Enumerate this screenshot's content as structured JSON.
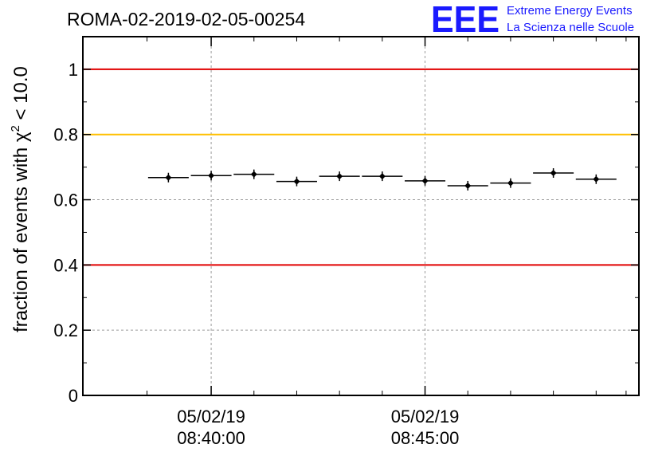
{
  "header": {
    "run_title": "ROMA-02-2019-02-05-00254",
    "logo_text": "EEE",
    "logo_line1": "Extreme Energy Events",
    "logo_line2": "La Scienza nelle Scuole"
  },
  "colors": {
    "red_line": "#e00000",
    "orange_line": "#ffc000",
    "logo_blue": "#1a1aff",
    "grid": "#9a9a9a",
    "points": "#000000"
  },
  "chart_data": {
    "type": "scatter",
    "title": "ROMA-02-2019-02-05-00254",
    "ylabel_prefix": "fraction of events with ",
    "ylabel_symbol": "χ",
    "ylabel_superscript": "2",
    "ylabel_suffix": " < 10.0",
    "ylim": [
      0,
      1.1
    ],
    "yticks": [
      0,
      0.2,
      0.4,
      0.6,
      0.8,
      1
    ],
    "ytick_labels": [
      "0",
      "0.2",
      "0.4",
      "0.6",
      "0.8",
      "1"
    ],
    "xlim_minutes": [
      -3.0,
      10.0
    ],
    "xticks": [
      {
        "minute": 0,
        "date": "05/02/19",
        "time": "08:40:00"
      },
      {
        "minute": 5,
        "date": "05/02/19",
        "time": "08:45:00"
      }
    ],
    "minor_xtick_minutes": [
      -1.5,
      1.0,
      2.0,
      3.0,
      4.0,
      6.0,
      7.0,
      8.0,
      9.0,
      9.7
    ],
    "reference_lines": [
      {
        "y": 1.0,
        "color": "red"
      },
      {
        "y": 0.8,
        "color": "orange"
      },
      {
        "y": 0.4,
        "color": "red"
      }
    ],
    "grid": true,
    "bin_width_minutes": 0.95,
    "points": [
      {
        "x": -1.0,
        "y": 0.668
      },
      {
        "x": 0.0,
        "y": 0.674
      },
      {
        "x": 1.0,
        "y": 0.678
      },
      {
        "x": 2.0,
        "y": 0.656
      },
      {
        "x": 3.0,
        "y": 0.672
      },
      {
        "x": 4.0,
        "y": 0.672
      },
      {
        "x": 5.0,
        "y": 0.658
      },
      {
        "x": 6.0,
        "y": 0.643
      },
      {
        "x": 7.0,
        "y": 0.651
      },
      {
        "x": 8.0,
        "y": 0.682
      },
      {
        "x": 9.0,
        "y": 0.663
      }
    ]
  }
}
